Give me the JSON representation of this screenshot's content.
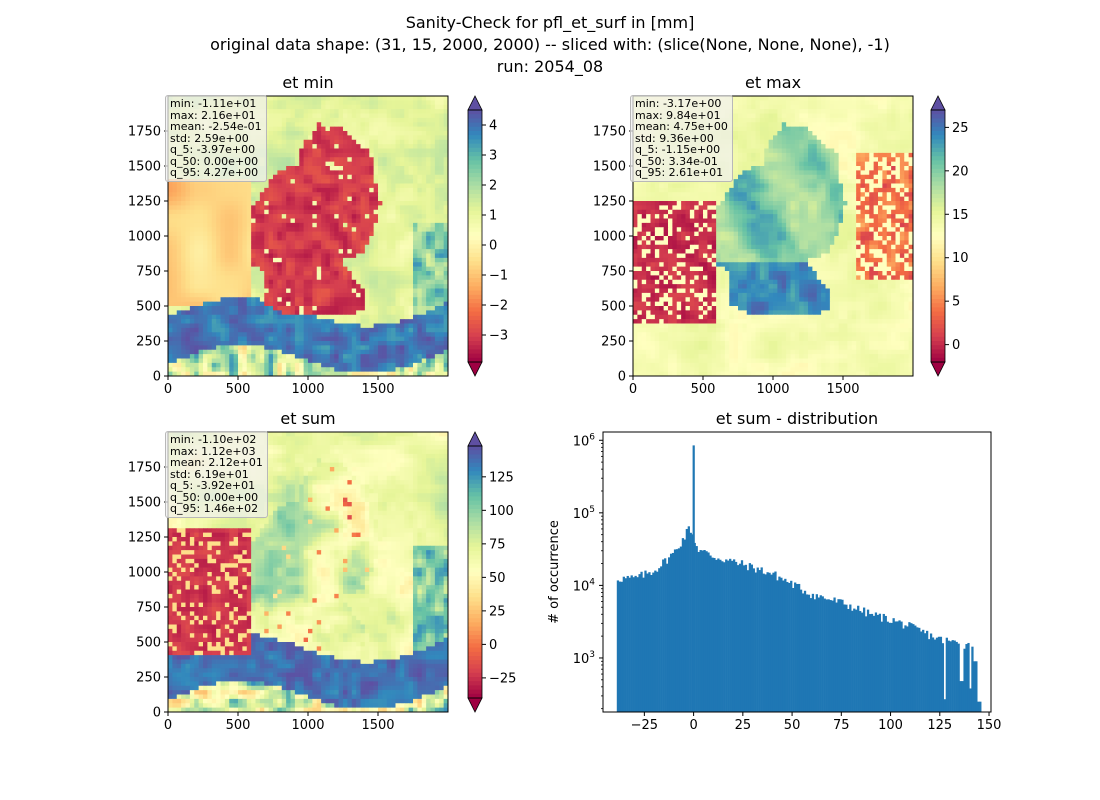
{
  "figure": {
    "title_lines": [
      "Sanity-Check for pfl_et_surf in [mm]",
      "original data shape: (31, 15, 2000, 2000) -- sliced with: (slice(None, None, None), -1)",
      "run: 2054_08"
    ],
    "colormap": "Spectral",
    "colormap_stops": [
      "#9e0142",
      "#d53e4f",
      "#f46d43",
      "#fdae61",
      "#fee08b",
      "#ffffbf",
      "#e6f598",
      "#abdda4",
      "#66c2a5",
      "#3288bd",
      "#5e4fa2"
    ],
    "histogram_color": "#1f77b4"
  },
  "chart_data": [
    {
      "type": "heatmap",
      "title": "et min",
      "x_ticks": [
        0,
        500,
        1000,
        1500
      ],
      "y_ticks": [
        0,
        250,
        500,
        750,
        1000,
        1250,
        1500,
        1750
      ],
      "xlim": [
        0,
        2000
      ],
      "ylim": [
        0,
        2000
      ],
      "color_range": [
        -3.9,
        4.5
      ],
      "colorbar_ticks": [
        4,
        3,
        2,
        1,
        0,
        -1,
        -2,
        -3
      ],
      "colorbar_labels": [
        "4",
        "3",
        "2",
        "1",
        "0",
        "−1",
        "−2",
        "−3"
      ],
      "colorbar_extend": "both",
      "stats": [
        "min: -1.11e+01",
        "max: 2.16e+01",
        "mean: -2.54e-01",
        "std: 2.59e+00",
        "q_5: -3.97e+00",
        "q_50: 0.00e+00",
        "q_95: 4.27e+00"
      ]
    },
    {
      "type": "heatmap",
      "title": "et max",
      "x_ticks": [
        0,
        500,
        1000,
        1500
      ],
      "y_ticks": [
        0,
        250,
        500,
        750,
        1000,
        1250,
        1500,
        1750
      ],
      "xlim": [
        0,
        2000
      ],
      "ylim": [
        0,
        2000
      ],
      "color_range": [
        -2,
        27
      ],
      "colorbar_ticks": [
        25,
        20,
        15,
        10,
        5,
        0
      ],
      "colorbar_labels": [
        "25",
        "20",
        "15",
        "10",
        "5",
        "0"
      ],
      "colorbar_extend": "both",
      "stats": [
        "min: -3.17e+00",
        "max: 9.84e+01",
        "mean: 4.75e+00",
        "std: 9.36e+00",
        "q_5: -1.15e+00",
        "q_50: 3.34e-01",
        "q_95: 2.61e+01"
      ]
    },
    {
      "type": "heatmap",
      "title": "et sum",
      "x_ticks": [
        0,
        500,
        1000,
        1500
      ],
      "y_ticks": [
        0,
        250,
        500,
        750,
        1000,
        1250,
        1500,
        1750
      ],
      "xlim": [
        0,
        2000
      ],
      "ylim": [
        0,
        2000
      ],
      "color_range": [
        -40,
        148
      ],
      "colorbar_ticks": [
        125,
        100,
        75,
        50,
        25,
        0,
        -25
      ],
      "colorbar_labels": [
        "125",
        "100",
        "75",
        "50",
        "25",
        "0",
        "−25"
      ],
      "colorbar_extend": "both",
      "stats": [
        "min: -1.10e+02",
        "max: 1.12e+03",
        "mean: 2.12e+01",
        "std: 6.19e+01",
        "q_5: -3.92e+01",
        "q_50: 0.00e+00",
        "q_95: 1.46e+02"
      ]
    },
    {
      "type": "bar",
      "title": "et sum - distribution",
      "ylabel": "# of occurrence",
      "xlabel": "",
      "yscale": "log",
      "x_ticks": [
        -25,
        0,
        25,
        50,
        75,
        100,
        125,
        150
      ],
      "x_tick_labels": [
        "−25",
        "0",
        "25",
        "50",
        "75",
        "100",
        "125",
        "150"
      ],
      "y_ticks": [
        1000,
        10000,
        100000,
        1000000
      ],
      "xlim": [
        -46,
        151
      ],
      "ylim": [
        180,
        1300000
      ],
      "bin_range": [
        -39,
        146
      ],
      "spike": {
        "x": 0,
        "count": 850000
      },
      "bins": [
        {
          "x": -30,
          "count": 12500
        },
        {
          "x": -20,
          "count": 16000
        },
        {
          "x": -10,
          "count": 28000
        },
        {
          "x": -5,
          "count": 45000
        },
        {
          "x": -2,
          "count": 65000
        },
        {
          "x": 2,
          "count": 32000
        },
        {
          "x": 10,
          "count": 25000
        },
        {
          "x": 25,
          "count": 19500
        },
        {
          "x": 40,
          "count": 14500
        },
        {
          "x": 50,
          "count": 10500
        },
        {
          "x": 60,
          "count": 7500
        },
        {
          "x": 75,
          "count": 5800
        },
        {
          "x": 90,
          "count": 4000
        },
        {
          "x": 100,
          "count": 3400
        },
        {
          "x": 110,
          "count": 2700
        },
        {
          "x": 125,
          "count": 1800
        },
        {
          "x": 140,
          "count": 1500
        },
        {
          "x": 146,
          "count": 1200
        }
      ],
      "outlier_dips": [
        {
          "x": 127.5,
          "count": 270
        },
        {
          "x": 136.0,
          "count": 480
        },
        {
          "x": 140.5,
          "count": 380
        },
        {
          "x": 143.0,
          "count": 900
        },
        {
          "x": 145.0,
          "count": 250
        }
      ]
    }
  ]
}
